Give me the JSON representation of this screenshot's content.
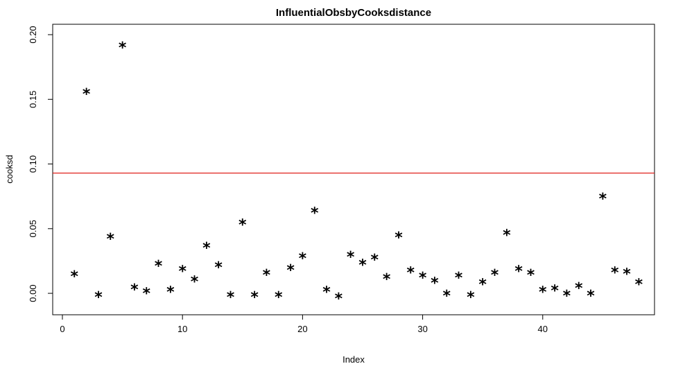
{
  "chart_data": {
    "type": "scatter",
    "title": "InfluentialObsbyCooksdistance",
    "xlabel": "Index",
    "ylabel": "cooksd",
    "xlim": [
      0,
      48.5
    ],
    "ylim": [
      -0.008,
      0.2
    ],
    "x_ticks": [
      0,
      10,
      20,
      30,
      40
    ],
    "y_ticks": [
      0.0,
      0.05,
      0.1,
      0.15,
      0.2
    ],
    "y_tick_labels": [
      "0.00",
      "0.05",
      "0.10",
      "0.15",
      "0.20"
    ],
    "marker": "*",
    "reference_line": {
      "y": 0.093,
      "color": "#e0201b"
    },
    "series": [
      {
        "x": [
          1,
          2,
          3,
          4,
          5,
          6,
          7,
          8,
          9,
          10,
          11,
          12,
          13,
          14,
          15,
          16,
          17,
          18,
          19,
          20,
          21,
          22,
          23,
          24,
          25,
          26,
          27,
          28,
          29,
          30,
          31,
          32,
          33,
          34,
          35,
          36,
          37,
          38,
          39,
          40,
          41,
          42,
          43,
          44,
          45,
          46,
          47,
          48
        ],
        "values": [
          0.015,
          0.156,
          -0.001,
          0.044,
          0.192,
          0.005,
          0.002,
          0.023,
          0.003,
          0.019,
          0.011,
          0.037,
          0.022,
          -0.001,
          0.055,
          -0.001,
          0.016,
          -0.001,
          0.02,
          0.029,
          0.064,
          0.003,
          -0.002,
          0.03,
          0.024,
          0.028,
          0.013,
          0.045,
          0.018,
          0.014,
          0.01,
          0.0,
          0.014,
          -0.001,
          0.009,
          0.016,
          0.047,
          0.019,
          0.016,
          0.003,
          0.004,
          0.0,
          0.006,
          0.0,
          0.075,
          0.018,
          0.017,
          0.009
        ]
      }
    ]
  }
}
